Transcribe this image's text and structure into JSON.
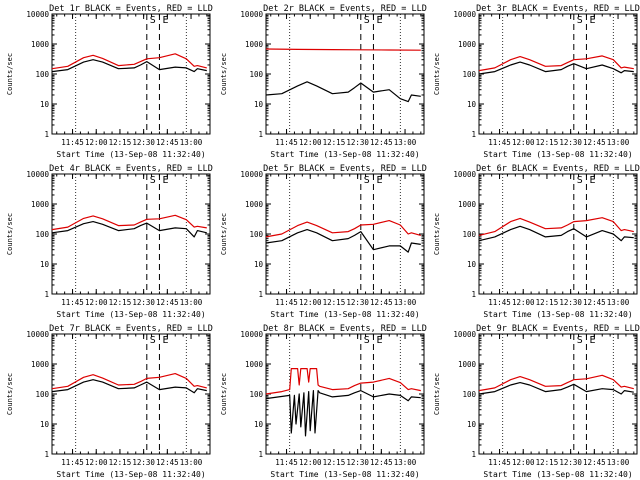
{
  "chart_data": [
    {
      "type": "line",
      "title": "Det 1r BLACK = Events, RED = LLD",
      "ylabel": "Counts/sec",
      "xlabel": "Start Time (13-Sep-08 11:32:40)",
      "yscale": "log",
      "ylim": [
        1,
        10000
      ],
      "yticks": [
        "1",
        "10",
        "100",
        "1000",
        "10000"
      ],
      "xlim": [
        "11:32",
        "13:12"
      ],
      "xticks": [
        "11:45",
        "12:00",
        "12:15",
        "12:30",
        "12:45",
        "13:00"
      ],
      "markers": [
        {
          "label": "S",
          "time": "12:32"
        },
        {
          "label": "E",
          "time": "12:40"
        }
      ],
      "dotted_lines": [
        "11:47",
        "12:57"
      ],
      "series": [
        {
          "color": "#000000",
          "x": [
            "11:32",
            "11:42",
            "11:52",
            "11:58",
            "12:04",
            "12:14",
            "12:24",
            "12:28",
            "12:32",
            "12:40",
            "12:50",
            "12:57",
            "13:02",
            "13:04",
            "13:10"
          ],
          "values": [
            120,
            140,
            250,
            300,
            250,
            150,
            160,
            200,
            260,
            140,
            170,
            160,
            120,
            150,
            130
          ]
        },
        {
          "color": "#dd0000",
          "x": [
            "11:32",
            "11:42",
            "11:52",
            "11:58",
            "12:04",
            "12:14",
            "12:24",
            "12:28",
            "12:32",
            "12:40",
            "12:50",
            "12:57",
            "13:02",
            "13:04",
            "13:10"
          ],
          "values": [
            150,
            180,
            350,
            420,
            330,
            190,
            210,
            260,
            320,
            350,
            470,
            320,
            180,
            190,
            160
          ]
        }
      ]
    },
    {
      "type": "line",
      "title": "Det 2r BLACK = Events, RED = LLD",
      "ylabel": "Counts/sec",
      "xlabel": "Start Time (13-Sep-08 11:32:40)",
      "yscale": "log",
      "ylim": [
        1,
        10000
      ],
      "yticks": [
        "1",
        "10",
        "100",
        "1000",
        "10000"
      ],
      "xlim": [
        "11:32",
        "13:12"
      ],
      "xticks": [
        "11:45",
        "12:00",
        "12:15",
        "12:30",
        "12:45",
        "13:00"
      ],
      "markers": [
        {
          "label": "S",
          "time": "12:32"
        },
        {
          "label": "E",
          "time": "12:40"
        }
      ],
      "dotted_lines": [
        "11:47",
        "12:57"
      ],
      "series": [
        {
          "color": "#000000",
          "x": [
            "11:32",
            "11:42",
            "11:52",
            "11:58",
            "12:04",
            "12:14",
            "12:24",
            "12:28",
            "12:32",
            "12:40",
            "12:50",
            "12:57",
            "13:02",
            "13:04",
            "13:10"
          ],
          "values": [
            20,
            22,
            40,
            55,
            40,
            22,
            25,
            35,
            50,
            25,
            30,
            15,
            12,
            20,
            18
          ]
        },
        {
          "color": "#dd0000",
          "x": [
            "11:32",
            "11:52",
            "12:14",
            "12:32",
            "12:50",
            "13:10"
          ],
          "values": [
            680,
            660,
            650,
            640,
            630,
            620
          ]
        }
      ]
    },
    {
      "type": "line",
      "title": "Det 3r BLACK = Events, RED = LLD",
      "ylabel": "Counts/sec",
      "xlabel": "Start Time (13-Sep-08 11:32:40)",
      "yscale": "log",
      "ylim": [
        1,
        10000
      ],
      "yticks": [
        "1",
        "10",
        "100",
        "1000",
        "10000"
      ],
      "xlim": [
        "11:32",
        "13:12"
      ],
      "xticks": [
        "11:45",
        "12:00",
        "12:15",
        "12:30",
        "12:45",
        "13:00"
      ],
      "markers": [
        {
          "label": "S",
          "time": "12:32"
        },
        {
          "label": "E",
          "time": "12:40"
        }
      ],
      "dotted_lines": [
        "11:47",
        "12:57"
      ],
      "series": [
        {
          "color": "#000000",
          "x": [
            "11:32",
            "11:42",
            "11:52",
            "11:58",
            "12:04",
            "12:14",
            "12:24",
            "12:28",
            "12:32",
            "12:40",
            "12:50",
            "12:57",
            "13:02",
            "13:04",
            "13:10"
          ],
          "values": [
            100,
            120,
            200,
            250,
            200,
            120,
            140,
            180,
            220,
            150,
            200,
            150,
            110,
            130,
            120
          ]
        },
        {
          "color": "#dd0000",
          "x": [
            "11:32",
            "11:42",
            "11:52",
            "11:58",
            "12:04",
            "12:14",
            "12:24",
            "12:28",
            "12:32",
            "12:40",
            "12:50",
            "12:57",
            "13:02",
            "13:04",
            "13:10"
          ],
          "values": [
            130,
            160,
            300,
            380,
            300,
            180,
            190,
            240,
            300,
            320,
            400,
            300,
            160,
            170,
            150
          ]
        }
      ]
    },
    {
      "type": "line",
      "title": "Det 4r BLACK = Events, RED = LLD",
      "ylabel": "Counts/sec",
      "xlabel": "Start Time (13-Sep-08 11:32:40)",
      "yscale": "log",
      "ylim": [
        1,
        10000
      ],
      "yticks": [
        "1",
        "10",
        "100",
        "1000",
        "10000"
      ],
      "xlim": [
        "11:32",
        "13:12"
      ],
      "xticks": [
        "11:45",
        "12:00",
        "12:15",
        "12:30",
        "12:45",
        "13:00"
      ],
      "markers": [
        {
          "label": "S",
          "time": "12:32"
        },
        {
          "label": "E",
          "time": "12:40"
        }
      ],
      "dotted_lines": [
        "11:47",
        "12:57"
      ],
      "series": [
        {
          "color": "#000000",
          "x": [
            "11:32",
            "11:42",
            "11:52",
            "11:58",
            "12:04",
            "12:14",
            "12:24",
            "12:28",
            "12:32",
            "12:40",
            "12:50",
            "12:57",
            "13:02",
            "13:04",
            "13:10"
          ],
          "values": [
            110,
            130,
            220,
            260,
            210,
            130,
            150,
            190,
            230,
            130,
            160,
            150,
            80,
            130,
            110
          ]
        },
        {
          "color": "#dd0000",
          "x": [
            "11:32",
            "11:42",
            "11:52",
            "11:58",
            "12:04",
            "12:14",
            "12:24",
            "12:28",
            "12:32",
            "12:40",
            "12:50",
            "12:57",
            "13:02",
            "13:04",
            "13:10"
          ],
          "values": [
            140,
            170,
            330,
            400,
            320,
            190,
            200,
            250,
            310,
            320,
            420,
            300,
            170,
            180,
            160
          ]
        }
      ]
    },
    {
      "type": "line",
      "title": "Det 5r BLACK = Events, RED = LLD",
      "ylabel": "Counts/sec",
      "xlabel": "Start Time (13-Sep-08 11:32:40)",
      "yscale": "log",
      "ylim": [
        1,
        10000
      ],
      "yticks": [
        "1",
        "10",
        "100",
        "1000",
        "10000"
      ],
      "xlim": [
        "11:32",
        "13:12"
      ],
      "xticks": [
        "11:45",
        "12:00",
        "12:15",
        "12:30",
        "12:45",
        "13:00"
      ],
      "markers": [
        {
          "label": "S",
          "time": "12:32"
        },
        {
          "label": "E",
          "time": "12:40"
        }
      ],
      "dotted_lines": [
        "11:47",
        "12:57"
      ],
      "series": [
        {
          "color": "#000000",
          "x": [
            "11:32",
            "11:42",
            "11:52",
            "11:58",
            "12:04",
            "12:14",
            "12:24",
            "12:28",
            "12:32",
            "12:40",
            "12:50",
            "12:57",
            "13:02",
            "13:04",
            "13:10"
          ],
          "values": [
            50,
            60,
            110,
            140,
            110,
            60,
            70,
            90,
            120,
            30,
            40,
            40,
            25,
            50,
            45
          ]
        },
        {
          "color": "#dd0000",
          "x": [
            "11:32",
            "11:42",
            "11:52",
            "11:58",
            "12:04",
            "12:14",
            "12:24",
            "12:28",
            "12:32",
            "12:40",
            "12:50",
            "12:57",
            "13:02",
            "13:04",
            "13:10"
          ],
          "values": [
            80,
            100,
            190,
            250,
            190,
            110,
            120,
            150,
            200,
            210,
            280,
            200,
            100,
            110,
            90
          ]
        }
      ]
    },
    {
      "type": "line",
      "title": "Det 6r BLACK = Events, RED = LLD",
      "ylabel": "Counts/sec",
      "xlabel": "Start Time (13-Sep-08 11:32:40)",
      "yscale": "log",
      "ylim": [
        1,
        10000
      ],
      "yticks": [
        "1",
        "10",
        "100",
        "1000",
        "10000"
      ],
      "xlim": [
        "11:32",
        "13:12"
      ],
      "xticks": [
        "11:45",
        "12:00",
        "12:15",
        "12:30",
        "12:45",
        "13:00"
      ],
      "markers": [
        {
          "label": "S",
          "time": "12:32"
        },
        {
          "label": "E",
          "time": "12:40"
        }
      ],
      "dotted_lines": [
        "11:47",
        "12:57"
      ],
      "series": [
        {
          "color": "#000000",
          "x": [
            "11:32",
            "11:42",
            "11:52",
            "11:58",
            "12:04",
            "12:14",
            "12:24",
            "12:28",
            "12:32",
            "12:40",
            "12:50",
            "12:57",
            "13:02",
            "13:04",
            "13:10"
          ],
          "values": [
            60,
            80,
            140,
            180,
            140,
            80,
            90,
            120,
            150,
            80,
            130,
            100,
            60,
            80,
            75
          ]
        },
        {
          "color": "#dd0000",
          "x": [
            "11:32",
            "11:42",
            "11:52",
            "11:58",
            "12:04",
            "12:14",
            "12:24",
            "12:28",
            "12:32",
            "12:40",
            "12:50",
            "12:57",
            "13:02",
            "13:04",
            "13:10"
          ],
          "values": [
            90,
            120,
            260,
            330,
            250,
            150,
            160,
            200,
            260,
            280,
            350,
            260,
            130,
            140,
            120
          ]
        }
      ]
    },
    {
      "type": "line",
      "title": "Det 7r BLACK = Events, RED = LLD",
      "ylabel": "Counts/sec",
      "xlabel": "Start Time (13-Sep-08 11:32:40)",
      "yscale": "log",
      "ylim": [
        1,
        10000
      ],
      "yticks": [
        "1",
        "10",
        "100",
        "1000",
        "10000"
      ],
      "xlim": [
        "11:32",
        "13:12"
      ],
      "xticks": [
        "11:45",
        "12:00",
        "12:15",
        "12:30",
        "12:45",
        "13:00"
      ],
      "markers": [
        {
          "label": "S",
          "time": "12:32"
        },
        {
          "label": "E",
          "time": "12:40"
        }
      ],
      "dotted_lines": [
        "11:47",
        "12:57"
      ],
      "series": [
        {
          "color": "#000000",
          "x": [
            "11:32",
            "11:42",
            "11:52",
            "11:58",
            "12:04",
            "12:14",
            "12:24",
            "12:28",
            "12:32",
            "12:40",
            "12:50",
            "12:57",
            "13:02",
            "13:04",
            "13:10"
          ],
          "values": [
            120,
            140,
            250,
            300,
            250,
            150,
            160,
            200,
            250,
            140,
            170,
            160,
            110,
            150,
            130
          ]
        },
        {
          "color": "#dd0000",
          "x": [
            "11:32",
            "11:42",
            "11:52",
            "11:58",
            "12:04",
            "12:14",
            "12:24",
            "12:28",
            "12:32",
            "12:40",
            "12:50",
            "12:57",
            "13:02",
            "13:04",
            "13:10"
          ],
          "values": [
            150,
            180,
            360,
            440,
            340,
            200,
            210,
            260,
            330,
            360,
            480,
            330,
            180,
            190,
            160
          ]
        }
      ]
    },
    {
      "type": "line",
      "title": "Det 8r BLACK = Events, RED = LLD",
      "ylabel": "Counts/sec",
      "xlabel": "Start Time (13-Sep-08 11:32:40)",
      "yscale": "log",
      "ylim": [
        1,
        10000
      ],
      "yticks": [
        "1",
        "10",
        "100",
        "1000",
        "10000"
      ],
      "xlim": [
        "11:32",
        "13:12"
      ],
      "xticks": [
        "11:45",
        "12:00",
        "12:15",
        "12:30",
        "12:45",
        "13:00"
      ],
      "markers": [
        {
          "label": "S",
          "time": "12:32"
        },
        {
          "label": "E",
          "time": "12:40"
        }
      ],
      "dotted_lines": [
        "11:47",
        "12:57"
      ],
      "series": [
        {
          "color": "#000000",
          "x": [
            "11:32",
            "11:40",
            "11:47",
            "11:48",
            "11:50",
            "11:51",
            "11:53",
            "11:54",
            "11:56",
            "11:57",
            "11:59",
            "12:00",
            "12:02",
            "12:03",
            "12:05",
            "12:06",
            "12:14",
            "12:24",
            "12:28",
            "12:32",
            "12:40",
            "12:50",
            "12:57",
            "13:02",
            "13:04",
            "13:10"
          ],
          "values": [
            70,
            80,
            90,
            5,
            90,
            10,
            100,
            8,
            110,
            4,
            120,
            6,
            130,
            5,
            130,
            110,
            80,
            90,
            110,
            130,
            80,
            100,
            90,
            60,
            80,
            75
          ]
        },
        {
          "color": "#dd0000",
          "x": [
            "11:32",
            "11:42",
            "11:47",
            "11:48",
            "11:52",
            "11:53",
            "11:54",
            "11:58",
            "11:59",
            "12:00",
            "12:04",
            "12:05",
            "12:06",
            "12:14",
            "12:24",
            "12:28",
            "12:32",
            "12:40",
            "12:50",
            "12:57",
            "13:02",
            "13:04",
            "13:10"
          ],
          "values": [
            100,
            120,
            140,
            700,
            700,
            200,
            700,
            700,
            250,
            700,
            700,
            200,
            180,
            140,
            150,
            190,
            230,
            250,
            330,
            240,
            140,
            150,
            130
          ]
        }
      ]
    },
    {
      "type": "line",
      "title": "Det 9r BLACK = Events, RED = LLD",
      "ylabel": "Counts/sec",
      "xlabel": "Start Time (13-Sep-08 11:32:40)",
      "yscale": "log",
      "ylim": [
        1,
        10000
      ],
      "yticks": [
        "1",
        "10",
        "100",
        "1000",
        "10000"
      ],
      "xlim": [
        "11:32",
        "13:12"
      ],
      "xticks": [
        "11:45",
        "12:00",
        "12:15",
        "12:30",
        "12:45",
        "13:00"
      ],
      "markers": [
        {
          "label": "S",
          "time": "12:32"
        },
        {
          "label": "E",
          "time": "12:40"
        }
      ],
      "dotted_lines": [
        "11:47",
        "12:57"
      ],
      "series": [
        {
          "color": "#000000",
          "x": [
            "11:32",
            "11:42",
            "11:52",
            "11:58",
            "12:04",
            "12:14",
            "12:24",
            "12:28",
            "12:32",
            "12:40",
            "12:50",
            "12:57",
            "13:02",
            "13:04",
            "13:10"
          ],
          "values": [
            100,
            120,
            200,
            240,
            200,
            120,
            140,
            170,
            210,
            120,
            150,
            140,
            100,
            130,
            115
          ]
        },
        {
          "color": "#dd0000",
          "x": [
            "11:32",
            "11:42",
            "11:52",
            "11:58",
            "12:04",
            "12:14",
            "12:24",
            "12:28",
            "12:32",
            "12:40",
            "12:50",
            "12:57",
            "13:02",
            "13:04",
            "13:10"
          ],
          "values": [
            130,
            160,
            300,
            380,
            300,
            180,
            190,
            240,
            300,
            320,
            420,
            300,
            170,
            180,
            150
          ]
        }
      ]
    }
  ]
}
